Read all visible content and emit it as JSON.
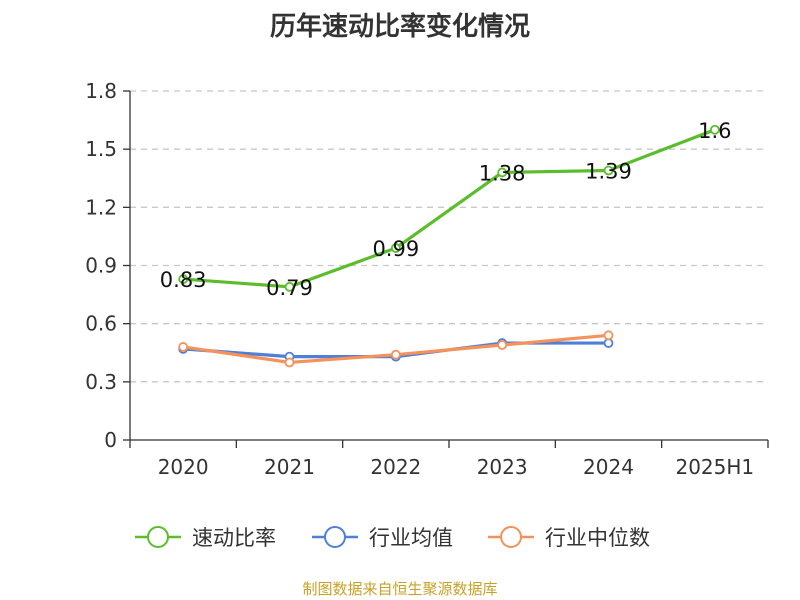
{
  "title": "历年速动比率变化情况",
  "source": "制图数据来自恒生聚源数据库",
  "chart_data": {
    "type": "line",
    "title": "历年速动比率变化情况",
    "categories": [
      "2020",
      "2021",
      "2022",
      "2023",
      "2024",
      "2025H1"
    ],
    "yticks": [
      "0",
      "0.3",
      "0.6",
      "0.9",
      "1.2",
      "1.5",
      "1.8"
    ],
    "ylim": [
      0,
      1.8
    ],
    "grid": true,
    "legend_position": "bottom",
    "series": [
      {
        "name": "速动比率",
        "color": "#5bbd2b",
        "values": [
          0.83,
          0.79,
          0.99,
          1.38,
          1.39,
          1.6
        ],
        "labels": [
          "0.83",
          "0.79",
          "0.99",
          "1.38",
          "1.39",
          "1.6"
        ]
      },
      {
        "name": "行业均值",
        "color": "#4f7fd9",
        "values": [
          0.47,
          0.43,
          0.43,
          0.5,
          0.5,
          null
        ]
      },
      {
        "name": "行业中位数",
        "color": "#f4925a",
        "values": [
          0.48,
          0.4,
          0.44,
          0.49,
          0.54,
          null
        ]
      }
    ]
  }
}
